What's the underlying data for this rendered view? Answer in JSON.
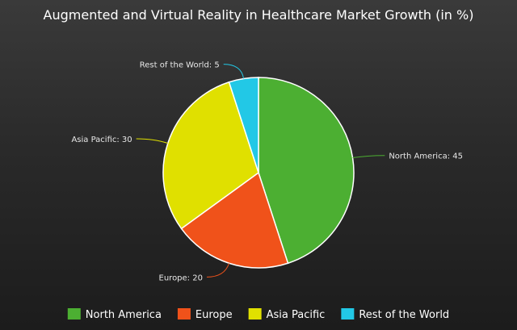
{
  "chart_data": {
    "type": "pie",
    "title": "Augmented and Virtual Reality in Healthcare Market Growth (in %)",
    "categories": [
      "North America",
      "Europe",
      "Asia Pacific",
      "Rest of the World"
    ],
    "values": [
      45,
      20,
      30,
      5
    ],
    "colors": [
      "#4caf32",
      "#f0521a",
      "#e0e000",
      "#22c8e6"
    ],
    "data_labels": [
      "North America: 45",
      "Europe: 20",
      "Asia Pacific: 30",
      "Rest of the World: 5"
    ],
    "legend_position": "bottom",
    "start_angle": "top, clockwise"
  }
}
